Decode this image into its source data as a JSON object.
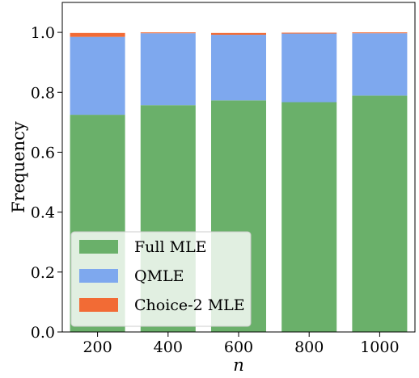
{
  "chart_data": {
    "type": "bar",
    "stacked": true,
    "categories": [
      "200",
      "400",
      "600",
      "800",
      "1000"
    ],
    "series": [
      {
        "name": "Full MLE",
        "color": "#6ab06a",
        "values": [
          0.725,
          0.757,
          0.773,
          0.767,
          0.789
        ]
      },
      {
        "name": "QMLE",
        "color": "#7ea8ee",
        "values": [
          0.26,
          0.24,
          0.219,
          0.229,
          0.208
        ]
      },
      {
        "name": "Choice-2 MLE",
        "color": "#f26b35",
        "values": [
          0.013,
          0.003,
          0.006,
          0.003,
          0.003
        ]
      }
    ],
    "xlabel": "n",
    "ylabel": "Frequency",
    "ylim": [
      0,
      1.1
    ],
    "yticks": [
      "0.0",
      "0.2",
      "0.4",
      "0.6",
      "0.8",
      "1.0"
    ],
    "ytick_values": [
      0,
      0.2,
      0.4,
      0.6,
      0.8,
      1.0
    ],
    "legend_position": "lower-left",
    "grid": false
  }
}
